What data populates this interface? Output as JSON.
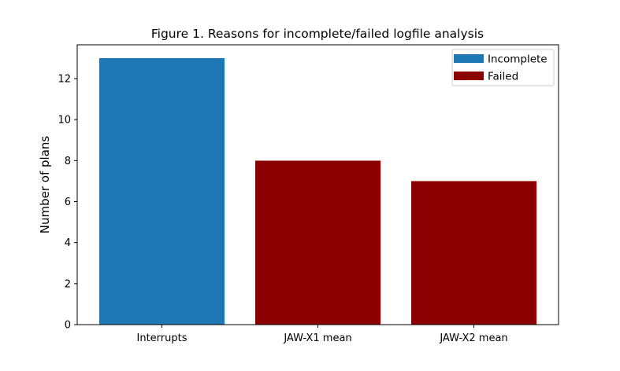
{
  "chart_data": {
    "type": "bar",
    "title": "Figure 1. Reasons for incomplete/failed logfile analysis",
    "xlabel": "",
    "ylabel": "Number of plans",
    "categories": [
      "Interrupts",
      "JAW-X1 mean",
      "JAW-X2 mean"
    ],
    "series": [
      {
        "name": "Incomplete",
        "color": "#1f77b4",
        "values": [
          13,
          null,
          null
        ]
      },
      {
        "name": "Failed",
        "color": "#8b0000",
        "values": [
          null,
          8,
          7
        ]
      }
    ],
    "yticks": [
      0,
      2,
      4,
      6,
      8,
      10,
      12
    ],
    "ylim": [
      0,
      13.65
    ],
    "grid": false,
    "legend": {
      "position": "top-right"
    }
  }
}
